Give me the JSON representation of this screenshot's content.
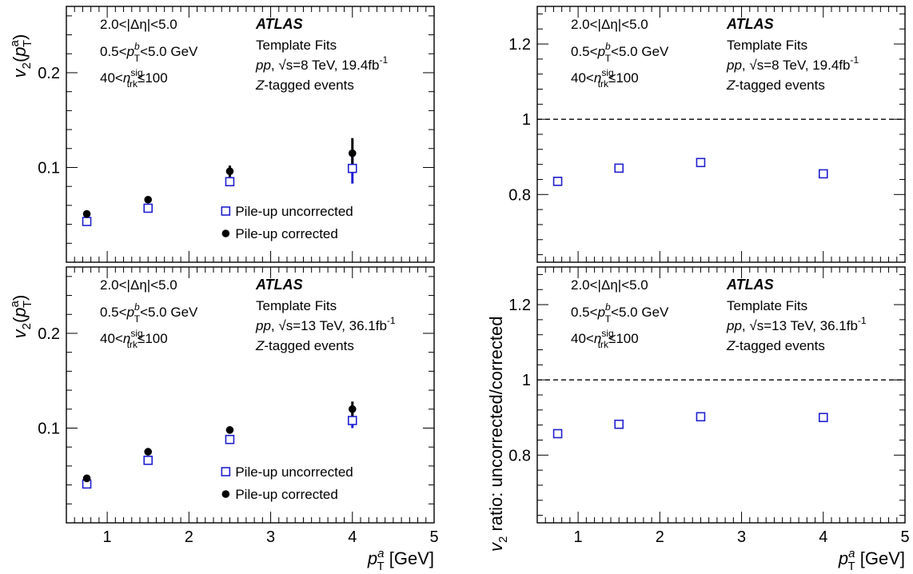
{
  "chart_data": [
    {
      "type": "scatter",
      "panel": "top-left",
      "ylabel": "v2(pTa)",
      "ylim": [
        0,
        0.27
      ],
      "xlim": [
        0.5,
        5
      ],
      "x": [
        0.75,
        1.5,
        2.5,
        4.0
      ],
      "yticks": [
        0.1,
        0.2
      ],
      "series": [
        {
          "name": "Pile-up uncorrected",
          "marker": "open-square",
          "color": "#1f1fd0",
          "values": [
            0.043,
            0.057,
            0.085,
            0.099
          ],
          "errors": [
            0.002,
            0.003,
            0.004,
            0.016
          ]
        },
        {
          "name": "Pile-up corrected",
          "marker": "filled-circle",
          "color": "#000000",
          "values": [
            0.051,
            0.066,
            0.096,
            0.115
          ],
          "errors": [
            0.002,
            0.003,
            0.006,
            0.016
          ]
        }
      ],
      "legend_position": "lower-right"
    },
    {
      "type": "scatter",
      "panel": "top-right",
      "ylabel": "v2 ratio: uncorrected/corrected",
      "ylim": [
        0.62,
        1.3
      ],
      "xlim": [
        0.5,
        5
      ],
      "x": [
        0.75,
        1.5,
        2.5,
        4.0
      ],
      "yticks": [
        0.8,
        1,
        1.2
      ],
      "reference_line": 1,
      "series": [
        {
          "name": "ratio",
          "marker": "open-square",
          "color": "#1f1fd0",
          "values": [
            0.835,
            0.87,
            0.885,
            0.855
          ]
        }
      ]
    },
    {
      "type": "scatter",
      "panel": "bottom-left",
      "ylabel": "v2(pTa)",
      "xlabel": "pTa [GeV]",
      "ylim": [
        0,
        0.27
      ],
      "xlim": [
        0.5,
        5
      ],
      "x": [
        0.75,
        1.5,
        2.5,
        4.0
      ],
      "xticks": [
        1,
        2,
        3,
        4,
        5
      ],
      "yticks": [
        0.1,
        0.2
      ],
      "series": [
        {
          "name": "Pile-up uncorrected",
          "marker": "open-square",
          "color": "#1f1fd0",
          "values": [
            0.041,
            0.066,
            0.088,
            0.108
          ],
          "errors": [
            0.002,
            0.003,
            0.003,
            0.008
          ]
        },
        {
          "name": "Pile-up corrected",
          "marker": "filled-circle",
          "color": "#000000",
          "values": [
            0.047,
            0.075,
            0.098,
            0.12
          ],
          "errors": [
            0.002,
            0.002,
            0.003,
            0.008
          ]
        }
      ],
      "legend_position": "lower-right"
    },
    {
      "type": "scatter",
      "panel": "bottom-right",
      "ylabel": "v2 ratio: uncorrected/corrected",
      "xlabel": "pTa [GeV]",
      "ylim": [
        0.62,
        1.3
      ],
      "xlim": [
        0.5,
        5
      ],
      "x": [
        0.75,
        1.5,
        2.5,
        4.0
      ],
      "xticks": [
        1,
        2,
        3,
        4,
        5
      ],
      "yticks": [
        0.8,
        1,
        1.2
      ],
      "reference_line": 1,
      "series": [
        {
          "name": "ratio",
          "marker": "open-square",
          "color": "#1f1fd0",
          "values": [
            0.857,
            0.882,
            0.902,
            0.9
          ]
        }
      ]
    }
  ],
  "text": {
    "atlas": "ATLAS",
    "template_fits": "Template Fits",
    "z_tagged": "-tagged events",
    "z_letter": "Z",
    "eta_cut": "2.0<|Δη|<5.0",
    "ptb_cut_pre": "0.5<",
    "ptb_cut_post": "<5.0 GeV",
    "ntrk_pre": "40<",
    "ntrk_post": "≤100",
    "energy_top": "=8 TeV, 19.4fb",
    "energy_bottom": "=13 TeV, 36.1fb",
    "lumi_exp": "-1",
    "pp": "pp",
    "sqrt": "√s",
    "legend_uncorrected": "Pile-up uncorrected",
    "legend_corrected": "Pile-up corrected",
    "ylabel_left_v": "v",
    "ylabel_left_sub": "2",
    "ylabel_right": "ratio: uncorrected/corrected",
    "xlabel_unit": "[GeV]",
    "p": "p",
    "T": "T",
    "a": "a",
    "b": "b",
    "n": "n",
    "sig": "sig",
    "trk": "trk"
  },
  "colors": {
    "uncorrected": "#1f1fd0",
    "corrected": "#000000",
    "axis": "#000000"
  }
}
